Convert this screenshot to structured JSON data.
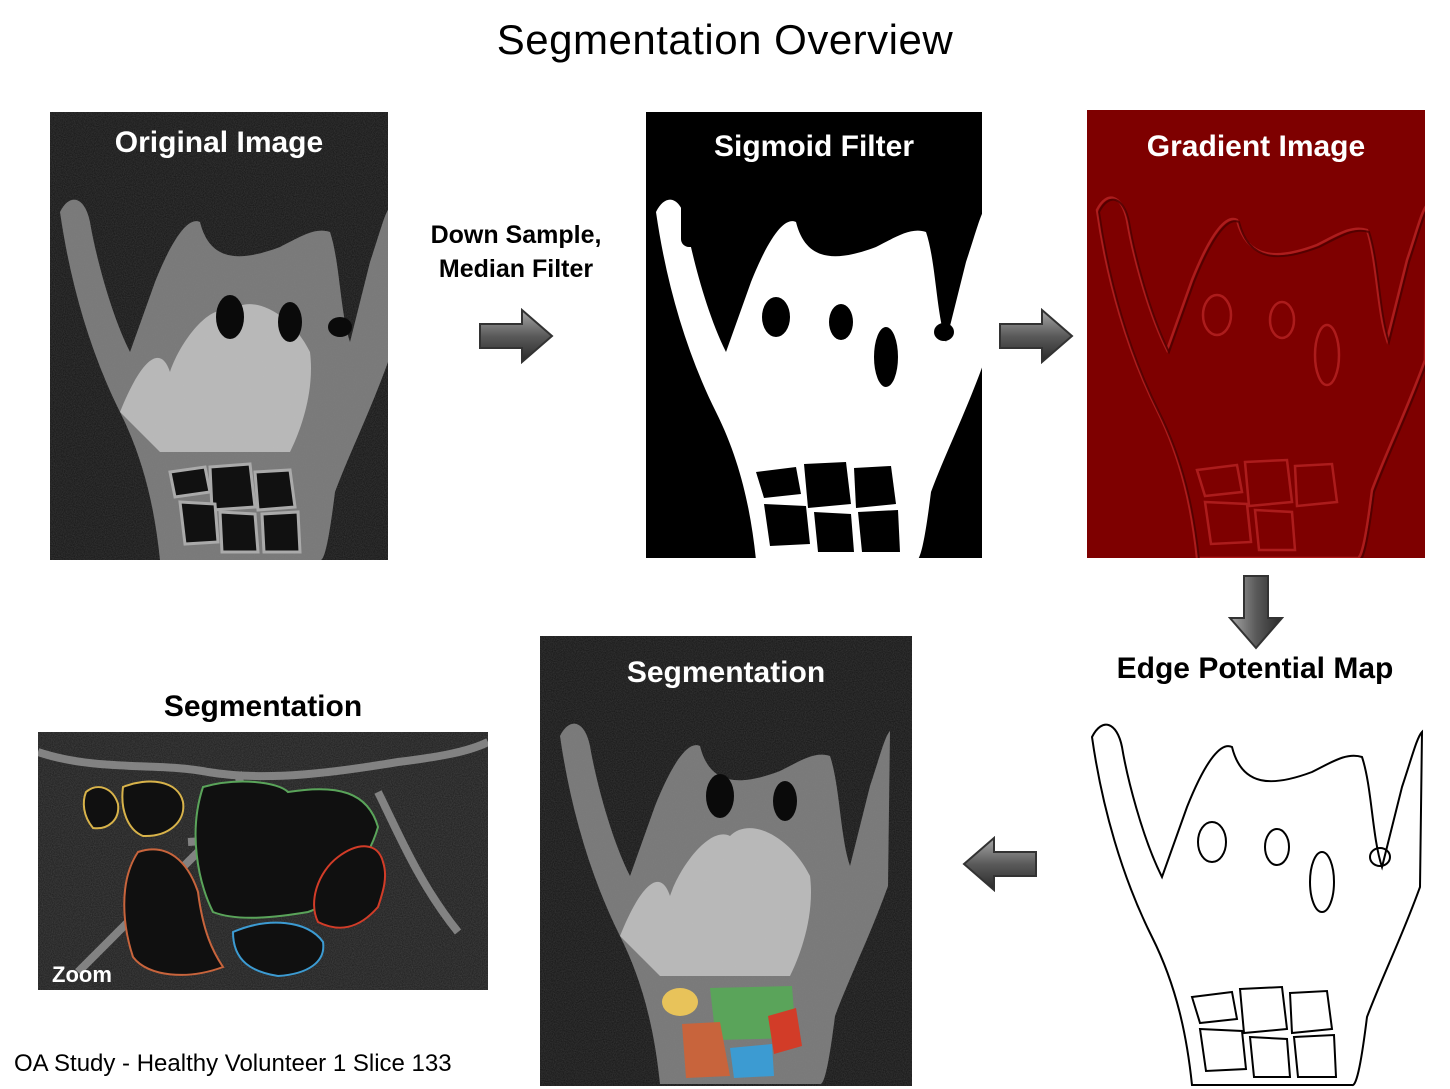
{
  "title": "Segmentation Overview",
  "panels": {
    "original": {
      "label": "Original Image"
    },
    "sigmoid": {
      "label": "Sigmoid Filter"
    },
    "gradient": {
      "label": "Gradient Image"
    },
    "edge": {
      "label": "Edge Potential Map"
    },
    "segmentation": {
      "label": "Segmentation"
    },
    "zoom_segmentation": {
      "label": "Segmentation",
      "zoom_label": "Zoom"
    }
  },
  "steps": {
    "downsample_line1": "Down Sample,",
    "downsample_line2": "Median Filter"
  },
  "footer": "OA Study - Healthy Volunteer 1 Slice 133",
  "colors": {
    "gradient_bg": "#7e0000",
    "arrow_dark": "#3a3a3a",
    "arrow_light": "#9a9a9a",
    "seg_yellow": "#e8c35a",
    "seg_green": "#5aa45a",
    "seg_orange": "#c8643c",
    "seg_red": "#d23c28",
    "seg_blue": "#3c9bd2"
  },
  "icons": {
    "arrow_right": "arrow-right-icon",
    "arrow_down": "arrow-down-icon",
    "arrow_left": "arrow-left-icon"
  }
}
